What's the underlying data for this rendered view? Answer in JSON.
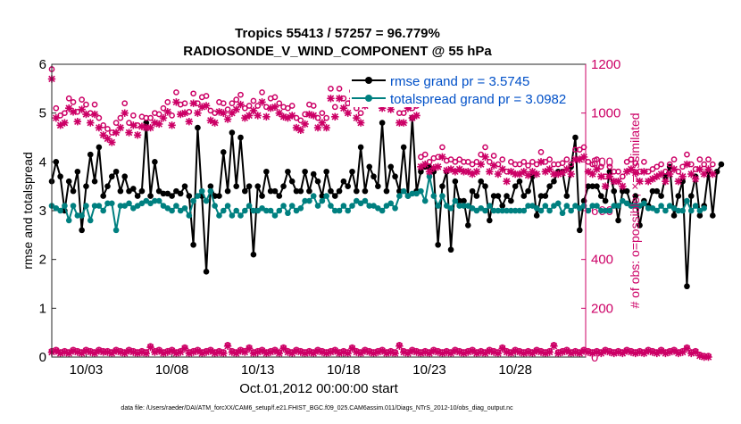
{
  "chart_data": {
    "type": "line",
    "title": "Tropics 55413 / 57257 = 96.779%",
    "subtitle": "RADIOSONDE_V_WIND_COMPONENT @ 55 hPa",
    "xlabel": "Oct.01,2012 00:00:00 start",
    "ylabel": "rmse and totalspread",
    "ylabel_right": "# of obs: o=possible; ×=assimilated",
    "footnote": "data file: /Users/raeder/DAI/ATM_forcXX/CAM6_setup/f.e21.FHIST_BGC.f09_025.CAM6assim.011/Diags_NTrS_2012-10/obs_diag_output.nc",
    "x_range": [
      1.0,
      32.1
    ],
    "ylim": [
      0,
      6
    ],
    "ylim_right": [
      0,
      1200
    ],
    "x_ticks": [
      3,
      8,
      13,
      18,
      23,
      28
    ],
    "x_tick_labels": [
      "10/03",
      "10/08",
      "10/13",
      "10/18",
      "10/23",
      "10/28"
    ],
    "y_ticks": [
      0,
      1,
      2,
      3,
      4,
      5,
      6
    ],
    "y_tick_labels": [
      "0",
      "1",
      "2",
      "3",
      "4",
      "5",
      "6"
    ],
    "y_right_ticks": [
      0,
      200,
      400,
      600,
      800,
      1000,
      1200
    ],
    "y_right_tick_labels": [
      "0",
      "200",
      "400",
      "600",
      "800",
      "1000",
      "1200"
    ],
    "x_start": 1.0,
    "x_step": 0.25,
    "legend": [
      {
        "name": "rmse grand pr = 3.5745",
        "color": "#000000"
      },
      {
        "name": "totalspread grand pr = 3.0982",
        "color": "#008080"
      }
    ],
    "series": [
      {
        "name": "rmse",
        "color": "#000000",
        "axis": "left",
        "values": [
          3.6,
          4.0,
          3.7,
          3.0,
          3.6,
          3.4,
          3.8,
          2.6,
          3.5,
          4.15,
          3.6,
          4.3,
          3.3,
          3.5,
          3.7,
          3.8,
          3.4,
          3.7,
          3.4,
          3.45,
          3.3,
          3.4,
          4.8,
          3.3,
          4.0,
          3.4,
          3.35,
          3.35,
          3.3,
          3.4,
          3.35,
          3.5,
          3.3,
          2.3,
          4.7,
          3.3,
          1.75,
          3.5,
          3.3,
          3.3,
          4.2,
          3.4,
          4.6,
          3.5,
          4.5,
          3.4,
          3.5,
          2.1,
          3.5,
          3.3,
          3.8,
          3.4,
          3.4,
          3.3,
          3.5,
          3.8,
          3.6,
          3.4,
          3.4,
          3.8,
          3.4,
          3.75,
          3.6,
          3.3,
          3.8,
          3.4,
          3.3,
          3.4,
          3.6,
          3.5,
          3.8,
          3.4,
          4.3,
          3.4,
          3.9,
          3.7,
          3.5,
          4.8,
          3.4,
          3.9,
          3.7,
          3.4,
          4.3,
          3.3,
          4.9,
          3.4,
          3.8,
          3.9,
          3.9,
          3.8,
          2.3,
          3.5,
          3.8,
          2.2,
          3.6,
          3.2,
          3.2,
          2.7,
          3.4,
          3.3,
          3.6,
          3.5,
          2.8,
          3.3,
          3.3,
          3.1,
          3.3,
          3.2,
          3.5,
          3.6,
          3.3,
          3.4,
          3.7,
          2.9,
          3.3,
          3.3,
          3.5,
          3.6,
          3.8,
          3.8,
          3.3,
          3.9,
          4.5,
          2.6,
          3.2,
          3.5,
          3.5,
          3.5,
          3.3,
          3.2,
          3.8,
          3.4,
          2.8,
          3.4,
          3.4,
          3.1,
          3.3,
          2.7,
          3.2,
          3.1,
          3.4,
          3.4,
          3.3,
          3.7,
          3.9,
          2.9,
          3.3,
          3.6,
          1.45,
          3.3,
          3.7,
          2.9,
          3.1,
          3.8,
          2.9,
          3.8,
          3.95
        ]
      },
      {
        "name": "totalspread",
        "color": "#008080",
        "axis": "left",
        "values": [
          3.1,
          3.05,
          3.0,
          3.1,
          2.8,
          3.1,
          2.9,
          2.9,
          3.1,
          2.8,
          3.1,
          3.1,
          3.0,
          3.15,
          3.15,
          2.6,
          3.1,
          3.1,
          3.15,
          3.05,
          3.1,
          3.15,
          3.2,
          3.15,
          3.2,
          3.2,
          3.1,
          3.05,
          3.0,
          3.1,
          3.0,
          3.05,
          2.9,
          3.2,
          3.3,
          3.4,
          3.2,
          3.4,
          3.1,
          2.9,
          3.0,
          3.1,
          2.9,
          3.0,
          2.9,
          3.0,
          3.1,
          3.0,
          3.0,
          3.05,
          3.0,
          3.0,
          2.9,
          3.0,
          3.1,
          2.95,
          3.1,
          3.0,
          3.05,
          3.2,
          3.2,
          3.3,
          3.1,
          3.2,
          3.3,
          3.1,
          3.0,
          3.0,
          3.1,
          3.0,
          3.1,
          3.2,
          3.15,
          3.2,
          3.1,
          3.1,
          3.05,
          3.0,
          3.1,
          3.15,
          3.05,
          3.3,
          3.4,
          3.3,
          3.35,
          3.35,
          3.4,
          3.2,
          3.7,
          3.3,
          3.1,
          3.3,
          3.1,
          3.05,
          3.2,
          3.1,
          3.1,
          3.1,
          3.05,
          3.0,
          3.05,
          3.0,
          3.1,
          3.0,
          3.0,
          3.0,
          3.0,
          3.0,
          3.0,
          3.0,
          3.0,
          3.1,
          3.1,
          3.05,
          3.0,
          3.1,
          3.0,
          3.1,
          3.15,
          2.95,
          3.1,
          3.0,
          3.1,
          3.05,
          3.1,
          3.0,
          3.1,
          3.1,
          3.0,
          3.0,
          3.0,
          3.1,
          3.1,
          3.2,
          3.15,
          3.1,
          3.1,
          3.1,
          3.15,
          3.05,
          3.05,
          3.0,
          3.1,
          3.0,
          3.1,
          3.05,
          3.0,
          3.0,
          3.2,
          3.0,
          3.1,
          3.0,
          3.05
        ]
      },
      {
        "name": "obs possible",
        "color": "#cc0066",
        "axis": "right",
        "marker": "o",
        "values": [
          1180,
          1020,
          990,
          1000,
          1060,
          1045,
          1005,
          1055,
          1035,
          1000,
          1035,
          980,
          950,
          935,
          920,
          960,
          980,
          1040,
          960,
          990,
          950,
          985,
          980,
          980,
          1000,
          995,
          1020,
          1045,
          990,
          1085,
          1035,
          1040,
          1005,
          1080,
          1040,
          1065,
          1070,
          1010,
          1000,
          1045,
          1040,
          1015,
          1040,
          1055,
          1075,
          1020,
          1030,
          1050,
          1030,
          1085,
          1025,
          1060,
          1065,
          1040,
          1025,
          1020,
          1030,
          980,
          970,
          995,
          1035,
          1030,
          980,
          1000,
          980,
          1100,
          1025,
          1100,
          1060,
          1040,
          1090,
          1020,
          1000,
          1070,
          1140,
          1100,
          1080,
          1060,
          1130,
          1055,
          1080,
          1000,
          1000,
          1060,
          1020,
          1030,
          820,
          830,
          800,
          815,
          820,
          860,
          805,
          810,
          800,
          810,
          800,
          800,
          790,
          800,
          830,
          860,
          800,
          825,
          790,
          810,
          760,
          800,
          790,
          790,
          800,
          785,
          800,
          790,
          840,
          800,
          810,
          790,
          790,
          795,
          810,
          790,
          850,
          850,
          860,
          800,
          790,
          810,
          780,
          740,
          780,
          760,
          760,
          740,
          800,
          810,
          795,
          760,
          800,
          760,
          770,
          780,
          790,
          760,
          790,
          810,
          760,
          780,
          830,
          790,
          770,
          810,
          790,
          810,
          790
        ]
      },
      {
        "name": "obs assimilated",
        "color": "#cc0066",
        "axis": "right",
        "marker": "x",
        "values": [
          1140,
          980,
          950,
          960,
          1020,
          1005,
          965,
          1015,
          995,
          960,
          995,
          940,
          910,
          895,
          880,
          920,
          940,
          1000,
          920,
          950,
          910,
          945,
          940,
          940,
          960,
          955,
          980,
          1005,
          950,
          1045,
          995,
          1000,
          965,
          1040,
          1000,
          1025,
          1030,
          970,
          960,
          1005,
          1000,
          975,
          1000,
          1015,
          1035,
          980,
          990,
          1010,
          990,
          1045,
          985,
          1020,
          1025,
          1000,
          985,
          980,
          990,
          940,
          930,
          955,
          995,
          990,
          940,
          960,
          940,
          1060,
          985,
          1060,
          1020,
          1000,
          1050,
          980,
          960,
          1030,
          1100,
          1060,
          1040,
          1020,
          1090,
          1015,
          1040,
          960,
          960,
          1020,
          980,
          990,
          780,
          790,
          760,
          775,
          780,
          820,
          765,
          770,
          760,
          770,
          760,
          760,
          750,
          760,
          790,
          820,
          760,
          785,
          750,
          770,
          720,
          760,
          750,
          750,
          760,
          745,
          760,
          750,
          800,
          760,
          770,
          750,
          750,
          755,
          770,
          750,
          810,
          810,
          820,
          760,
          750,
          770,
          740,
          700,
          740,
          720,
          720,
          700,
          760,
          770,
          755,
          720,
          760,
          720,
          730,
          740,
          750,
          720,
          750,
          770,
          720,
          740,
          790,
          750,
          730,
          770,
          750,
          770,
          750
        ]
      },
      {
        "name": "obs rejected possible",
        "color": "#cc0066",
        "axis": "right",
        "marker": "o",
        "values": [
          25,
          30,
          20,
          25,
          20,
          30,
          25,
          20,
          30,
          25,
          20,
          30,
          25,
          25,
          20,
          30,
          25,
          20,
          30,
          25,
          20,
          25,
          20,
          45,
          25,
          30,
          20,
          25,
          30,
          20,
          25,
          40,
          20,
          25,
          30,
          20,
          25,
          30,
          20,
          25,
          20,
          50,
          25,
          20,
          30,
          25,
          40,
          20,
          25,
          30,
          20,
          25,
          30,
          20,
          40,
          25,
          20,
          30,
          25,
          20,
          25,
          20,
          30,
          25,
          20,
          25,
          30,
          20,
          25,
          20,
          40,
          25,
          20,
          30,
          25,
          20,
          25,
          30,
          20,
          25,
          20,
          50,
          25,
          20,
          30,
          25,
          20,
          25,
          20,
          30,
          25,
          20,
          25,
          20,
          30,
          25,
          20,
          25,
          30,
          20,
          25,
          20,
          30,
          25,
          20,
          40,
          25,
          20,
          30,
          25,
          20,
          25,
          20,
          30,
          25,
          20,
          25,
          50,
          20,
          25,
          30,
          20,
          25,
          20,
          30,
          25,
          20,
          25,
          20,
          30,
          25,
          20,
          25,
          20,
          30,
          25,
          20,
          25,
          20,
          30,
          25,
          20,
          30,
          20,
          25,
          30,
          20,
          25,
          40,
          20,
          25,
          10,
          5,
          5
        ]
      },
      {
        "name": "obs rejected assimilated",
        "color": "#cc0066",
        "axis": "right",
        "marker": "x",
        "values": [
          20,
          25,
          15,
          20,
          15,
          25,
          20,
          15,
          25,
          20,
          15,
          25,
          20,
          20,
          15,
          25,
          20,
          15,
          25,
          20,
          15,
          20,
          15,
          40,
          20,
          25,
          15,
          20,
          25,
          15,
          20,
          35,
          15,
          20,
          25,
          15,
          20,
          25,
          15,
          20,
          15,
          45,
          20,
          15,
          25,
          20,
          35,
          15,
          20,
          25,
          15,
          20,
          25,
          15,
          35,
          20,
          15,
          25,
          20,
          15,
          20,
          15,
          25,
          20,
          15,
          20,
          25,
          15,
          20,
          15,
          35,
          20,
          15,
          25,
          20,
          15,
          20,
          25,
          15,
          20,
          15,
          45,
          20,
          15,
          25,
          20,
          15,
          20,
          15,
          25,
          20,
          15,
          20,
          15,
          25,
          20,
          15,
          20,
          25,
          15,
          20,
          15,
          25,
          20,
          15,
          35,
          20,
          15,
          25,
          20,
          15,
          20,
          15,
          25,
          20,
          15,
          20,
          45,
          15,
          20,
          25,
          15,
          20,
          15,
          25,
          20,
          15,
          20,
          15,
          25,
          20,
          15,
          20,
          15,
          25,
          20,
          15,
          20,
          15,
          25,
          20,
          15,
          25,
          15,
          20,
          25,
          15,
          20,
          35,
          15,
          20,
          5,
          0,
          0
        ]
      }
    ]
  }
}
